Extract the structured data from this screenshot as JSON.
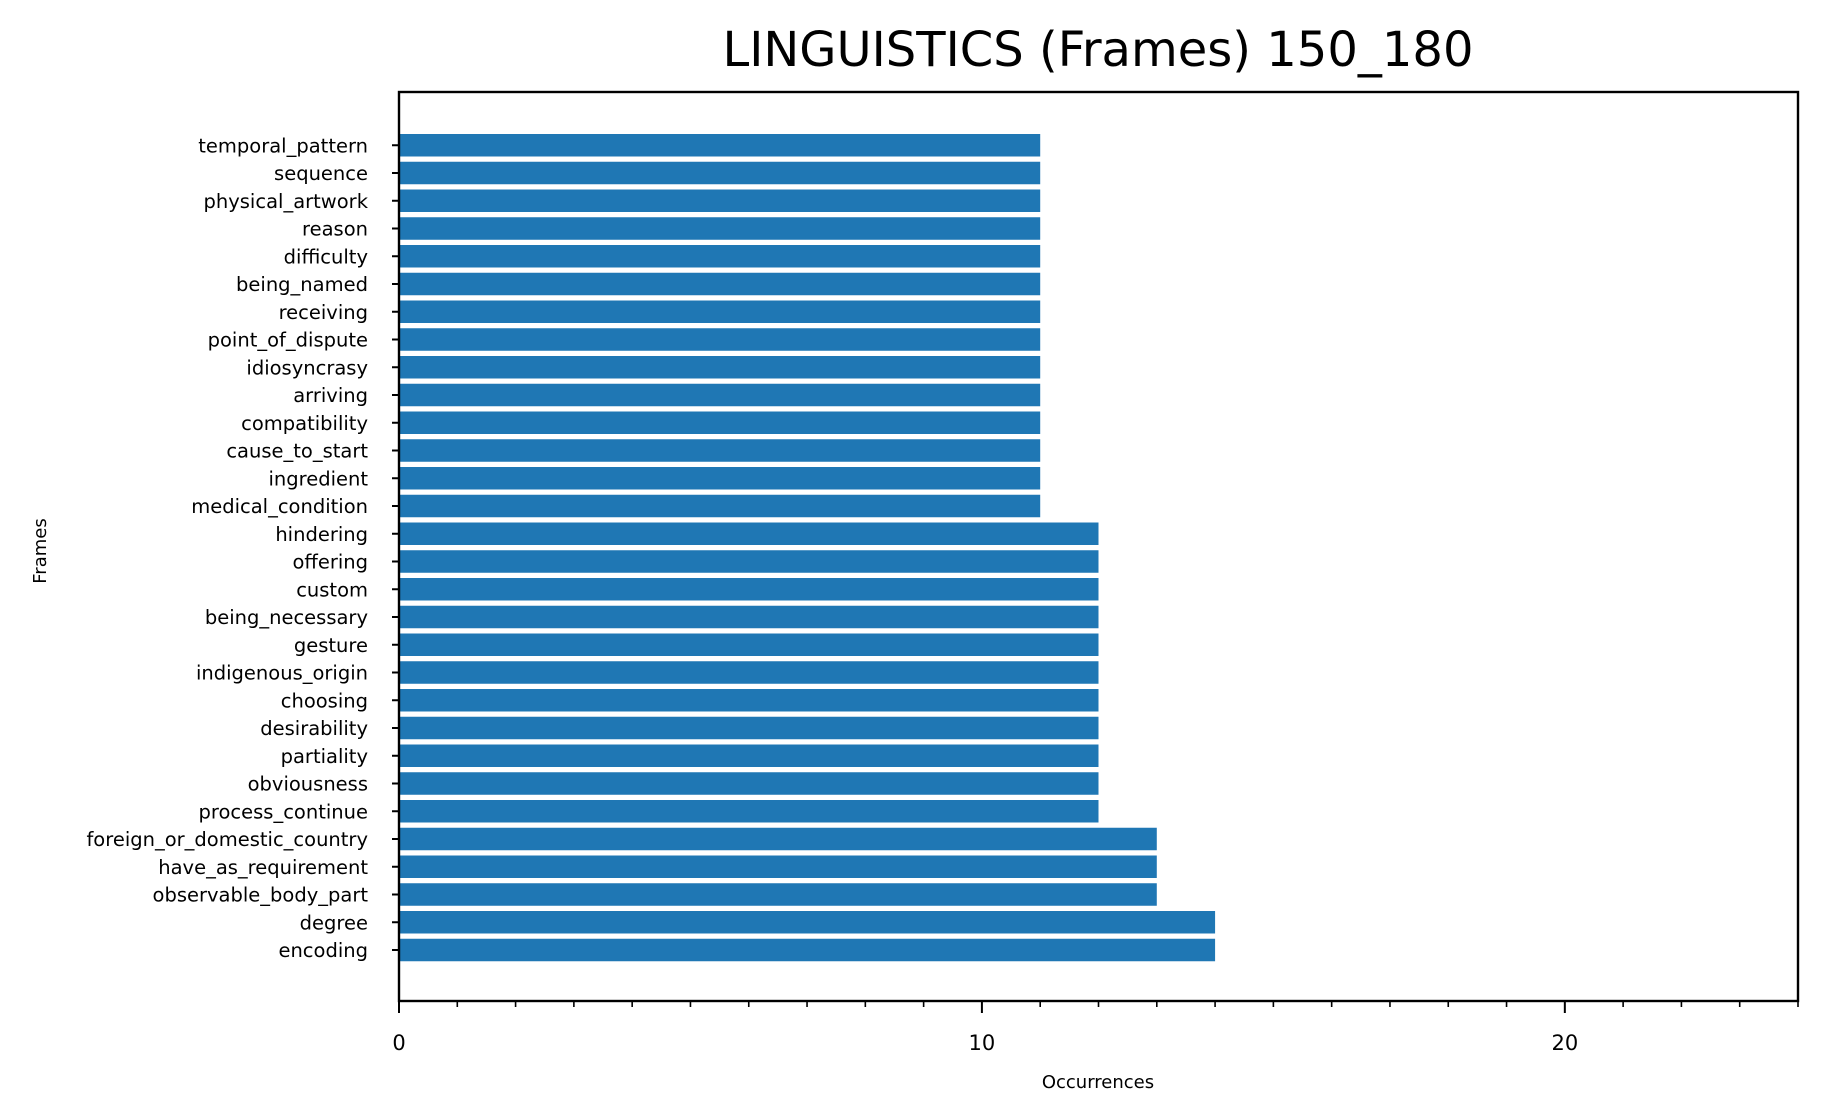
{
  "chart_data": {
    "type": "bar",
    "orientation": "horizontal",
    "title": "LINGUISTICS (Frames) 150_180",
    "xlabel": "Occurrences",
    "ylabel": "Frames",
    "xlim": [
      0,
      24
    ],
    "x_major_ticks": [
      0,
      10,
      20
    ],
    "x_minor_step": 1,
    "grid": false,
    "bar_color": "#1f77b4",
    "categories": [
      "encoding",
      "degree",
      "observable_body_part",
      "have_as_requirement",
      "foreign_or_domestic_country",
      "process_continue",
      "obviousness",
      "partiality",
      "desirability",
      "choosing",
      "indigenous_origin",
      "gesture",
      "being_necessary",
      "custom",
      "offering",
      "hindering",
      "medical_condition",
      "ingredient",
      "cause_to_start",
      "compatibility",
      "arriving",
      "idiosyncrasy",
      "point_of_dispute",
      "receiving",
      "being_named",
      "difficulty",
      "reason",
      "physical_artwork",
      "sequence",
      "temporal_pattern"
    ],
    "values": [
      14,
      14,
      13,
      13,
      13,
      12,
      12,
      12,
      12,
      12,
      12,
      12,
      12,
      12,
      12,
      12,
      11,
      11,
      11,
      11,
      11,
      11,
      11,
      11,
      11,
      11,
      11,
      11,
      11,
      11
    ]
  }
}
